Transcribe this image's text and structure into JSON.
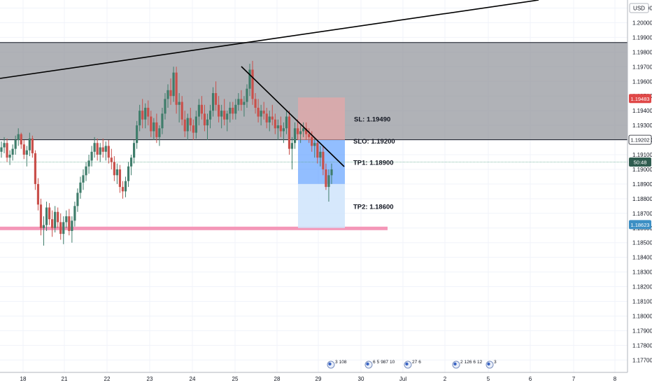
{
  "chart_data": {
    "type": "candlestick",
    "symbol": "EURUSD",
    "currency_label": "USD",
    "y_axis": {
      "ylim": [
        1.17655,
        1.2072
      ],
      "ticks": [
        "1.20100",
        "1.20000",
        "1.19900",
        "1.19800",
        "1.19700",
        "1.19600",
        "1.19500",
        "1.19400",
        "1.19300",
        "1.19200",
        "1.19100",
        "1.19000",
        "1.18900",
        "1.18800",
        "1.18700",
        "1.18600",
        "1.18500",
        "1.18400",
        "1.18300",
        "1.18200",
        "1.18100",
        "1.18000",
        "1.17900",
        "1.17800",
        "1.17700"
      ],
      "price_tags": [
        {
          "label": "1.19483",
          "value": 1.19483,
          "color": "#e04848"
        },
        {
          "label": "1.19202",
          "value": 1.19202,
          "color": "#ffffff"
        },
        {
          "label": "50:48",
          "value": 1.1905,
          "color": "#2f5c4f"
        },
        {
          "label": "1.18623",
          "value": 1.18623,
          "color": "#3c8fc4"
        }
      ]
    },
    "x_axis": {
      "ticks": [
        "18",
        "21",
        "22",
        "23",
        "24",
        "25",
        "28",
        "29",
        "30",
        "Jul",
        "2",
        "5",
        "6",
        "7",
        "8"
      ]
    },
    "zone": {
      "from": 1.19202,
      "to": 1.19865,
      "color": "#8e9298"
    },
    "support_level": {
      "value": 1.18595,
      "color": "#f497b8"
    },
    "trade": {
      "entry": 1.192,
      "stop_loss": 1.1949,
      "tp1": 1.189,
      "tp2": 1.186,
      "labels": [
        "SL: 1.19490",
        "SLO: 1.19200",
        "TP1: 1.18900",
        "TP2: 1.18600"
      ]
    },
    "trendlines": [
      {
        "name": "rising-trendline",
        "color": "#000000"
      },
      {
        "name": "descending-trendline",
        "color": "#000000"
      }
    ],
    "candles": [
      [
        1.1912,
        1.1919,
        1.1908,
        1.1915
      ],
      [
        1.1915,
        1.1922,
        1.1911,
        1.1918
      ],
      [
        1.1918,
        1.1921,
        1.1905,
        1.1908
      ],
      [
        1.1908,
        1.1913,
        1.1903,
        1.191
      ],
      [
        1.191,
        1.1917,
        1.1906,
        1.1914
      ],
      [
        1.1914,
        1.1923,
        1.191,
        1.192
      ],
      [
        1.192,
        1.1928,
        1.1916,
        1.1924
      ],
      [
        1.1924,
        1.1925,
        1.1914,
        1.1917
      ],
      [
        1.1917,
        1.192,
        1.1907,
        1.191
      ],
      [
        1.191,
        1.1916,
        1.1902,
        1.1913
      ],
      [
        1.1913,
        1.1925,
        1.1909,
        1.1921
      ],
      [
        1.1921,
        1.1923,
        1.1908,
        1.1911
      ],
      [
        1.1911,
        1.1913,
        1.1886,
        1.189
      ],
      [
        1.189,
        1.1894,
        1.1872,
        1.1876
      ],
      [
        1.1876,
        1.188,
        1.1855,
        1.186
      ],
      [
        1.186,
        1.1868,
        1.1848,
        1.1862
      ],
      [
        1.1862,
        1.1878,
        1.1858,
        1.1874
      ],
      [
        1.1874,
        1.1877,
        1.1862,
        1.1866
      ],
      [
        1.1866,
        1.1872,
        1.1854,
        1.186
      ],
      [
        1.186,
        1.1875,
        1.1857,
        1.1871
      ],
      [
        1.1871,
        1.1874,
        1.186,
        1.1864
      ],
      [
        1.1864,
        1.187,
        1.1852,
        1.1856
      ],
      [
        1.1856,
        1.1868,
        1.1849,
        1.1864
      ],
      [
        1.1864,
        1.1872,
        1.186,
        1.1868
      ],
      [
        1.1868,
        1.1873,
        1.1855,
        1.1858
      ],
      [
        1.1858,
        1.1868,
        1.185,
        1.1865
      ],
      [
        1.1865,
        1.1878,
        1.1861,
        1.1875
      ],
      [
        1.1875,
        1.1887,
        1.1871,
        1.1884
      ],
      [
        1.1884,
        1.1895,
        1.188,
        1.1891
      ],
      [
        1.1891,
        1.19,
        1.1886,
        1.1896
      ],
      [
        1.1896,
        1.1905,
        1.1892,
        1.1902
      ],
      [
        1.1902,
        1.191,
        1.1897,
        1.1906
      ],
      [
        1.1906,
        1.1916,
        1.1902,
        1.1912
      ],
      [
        1.1912,
        1.1922,
        1.1908,
        1.1918
      ],
      [
        1.1918,
        1.1921,
        1.1906,
        1.191
      ],
      [
        1.191,
        1.1918,
        1.1905,
        1.1915
      ],
      [
        1.1915,
        1.1921,
        1.1908,
        1.1912
      ],
      [
        1.1912,
        1.1919,
        1.1906,
        1.1916
      ],
      [
        1.1916,
        1.192,
        1.1904,
        1.1908
      ],
      [
        1.1908,
        1.1914,
        1.19,
        1.1905
      ],
      [
        1.1905,
        1.1909,
        1.1892,
        1.1896
      ],
      [
        1.1896,
        1.1904,
        1.189,
        1.19
      ],
      [
        1.19,
        1.1903,
        1.1884,
        1.1888
      ],
      [
        1.1888,
        1.1892,
        1.188,
        1.1885
      ],
      [
        1.1885,
        1.1895,
        1.1881,
        1.1892
      ],
      [
        1.1892,
        1.1905,
        1.1888,
        1.1902
      ],
      [
        1.1902,
        1.191,
        1.1896,
        1.1908
      ],
      [
        1.1908,
        1.192,
        1.1904,
        1.1918
      ],
      [
        1.1918,
        1.1933,
        1.1914,
        1.193
      ],
      [
        1.193,
        1.1944,
        1.1926,
        1.194
      ],
      [
        1.194,
        1.1948,
        1.1928,
        1.1934
      ],
      [
        1.1934,
        1.1945,
        1.1928,
        1.1942
      ],
      [
        1.1942,
        1.1947,
        1.193,
        1.1936
      ],
      [
        1.1936,
        1.194,
        1.1922,
        1.1926
      ],
      [
        1.1926,
        1.1935,
        1.192,
        1.1932
      ],
      [
        1.1932,
        1.1938,
        1.1918,
        1.1922
      ],
      [
        1.1922,
        1.193,
        1.1916,
        1.1928
      ],
      [
        1.1928,
        1.1942,
        1.1924,
        1.1938
      ],
      [
        1.1938,
        1.1952,
        1.1934,
        1.1948
      ],
      [
        1.1948,
        1.1958,
        1.1942,
        1.1954
      ],
      [
        1.1954,
        1.1962,
        1.1944,
        1.195
      ],
      [
        1.195,
        1.197,
        1.1946,
        1.1966
      ],
      [
        1.1966,
        1.197,
        1.1938,
        1.1944
      ],
      [
        1.1944,
        1.1952,
        1.1932,
        1.1946
      ],
      [
        1.1946,
        1.195,
        1.193,
        1.1934
      ],
      [
        1.1934,
        1.194,
        1.1922,
        1.1926
      ],
      [
        1.1926,
        1.1938,
        1.192,
        1.1935
      ],
      [
        1.1935,
        1.1942,
        1.1926,
        1.193
      ],
      [
        1.193,
        1.1934,
        1.192,
        1.1925
      ],
      [
        1.1925,
        1.194,
        1.1921,
        1.1936
      ],
      [
        1.1936,
        1.1948,
        1.193,
        1.1944
      ],
      [
        1.1944,
        1.195,
        1.1934,
        1.1938
      ],
      [
        1.1938,
        1.1944,
        1.1926,
        1.193
      ],
      [
        1.193,
        1.1938,
        1.192,
        1.1934
      ],
      [
        1.1934,
        1.1944,
        1.1928,
        1.194
      ],
      [
        1.194,
        1.1956,
        1.1936,
        1.1952
      ],
      [
        1.1952,
        1.196,
        1.194,
        1.1944
      ],
      [
        1.1944,
        1.195,
        1.1932,
        1.1936
      ],
      [
        1.1936,
        1.1944,
        1.1928,
        1.194
      ],
      [
        1.194,
        1.1948,
        1.193,
        1.1934
      ],
      [
        1.1934,
        1.194,
        1.1926,
        1.1938
      ],
      [
        1.1938,
        1.1946,
        1.1932,
        1.1942
      ],
      [
        1.1942,
        1.1946,
        1.1934,
        1.1938
      ],
      [
        1.1938,
        1.1948,
        1.1934,
        1.1944
      ],
      [
        1.1944,
        1.1952,
        1.194,
        1.1948
      ],
      [
        1.1948,
        1.1954,
        1.194,
        1.1944
      ],
      [
        1.1944,
        1.195,
        1.1936,
        1.1946
      ],
      [
        1.1946,
        1.1958,
        1.1942,
        1.1955
      ],
      [
        1.1955,
        1.1972,
        1.195,
        1.1968
      ],
      [
        1.1968,
        1.1974,
        1.1944,
        1.1948
      ],
      [
        1.1948,
        1.1952,
        1.1938,
        1.1942
      ],
      [
        1.1942,
        1.1948,
        1.1932,
        1.1936
      ],
      [
        1.1936,
        1.1944,
        1.193,
        1.194
      ],
      [
        1.194,
        1.1946,
        1.1934,
        1.1938
      ],
      [
        1.1938,
        1.1942,
        1.1928,
        1.1932
      ],
      [
        1.1932,
        1.194,
        1.1926,
        1.1936
      ],
      [
        1.1936,
        1.1944,
        1.193,
        1.1934
      ],
      [
        1.1934,
        1.1938,
        1.1924,
        1.1928
      ],
      [
        1.1928,
        1.1934,
        1.192,
        1.193
      ],
      [
        1.193,
        1.1936,
        1.1922,
        1.1926
      ],
      [
        1.1926,
        1.1932,
        1.1918,
        1.1928
      ],
      [
        1.1928,
        1.194,
        1.1924,
        1.1936
      ],
      [
        1.1936,
        1.194,
        1.191,
        1.1914
      ],
      [
        1.1914,
        1.1922,
        1.19,
        1.1918
      ],
      [
        1.1918,
        1.1932,
        1.1914,
        1.1928
      ],
      [
        1.1928,
        1.1934,
        1.192,
        1.1924
      ],
      [
        1.1924,
        1.193,
        1.1918,
        1.1926
      ],
      [
        1.1926,
        1.1932,
        1.1922,
        1.1928
      ],
      [
        1.1928,
        1.1932,
        1.192,
        1.1924
      ],
      [
        1.1924,
        1.1928,
        1.1918,
        1.1922
      ],
      [
        1.1922,
        1.1926,
        1.1912,
        1.1916
      ],
      [
        1.1916,
        1.1922,
        1.1908,
        1.1918
      ],
      [
        1.1918,
        1.192,
        1.1904,
        1.1908
      ],
      [
        1.1908,
        1.1916,
        1.1902,
        1.1912
      ],
      [
        1.1912,
        1.1916,
        1.1896,
        1.19
      ],
      [
        1.19,
        1.1904,
        1.1886,
        1.1888
      ],
      [
        1.1888,
        1.19,
        1.1878,
        1.1896
      ],
      [
        1.1896,
        1.1904,
        1.189,
        1.19
      ]
    ],
    "events": [
      "3",
      "108",
      "6",
      "5",
      "987",
      "10",
      "27",
      "6",
      "2",
      "126",
      "6",
      "12",
      "3"
    ]
  }
}
